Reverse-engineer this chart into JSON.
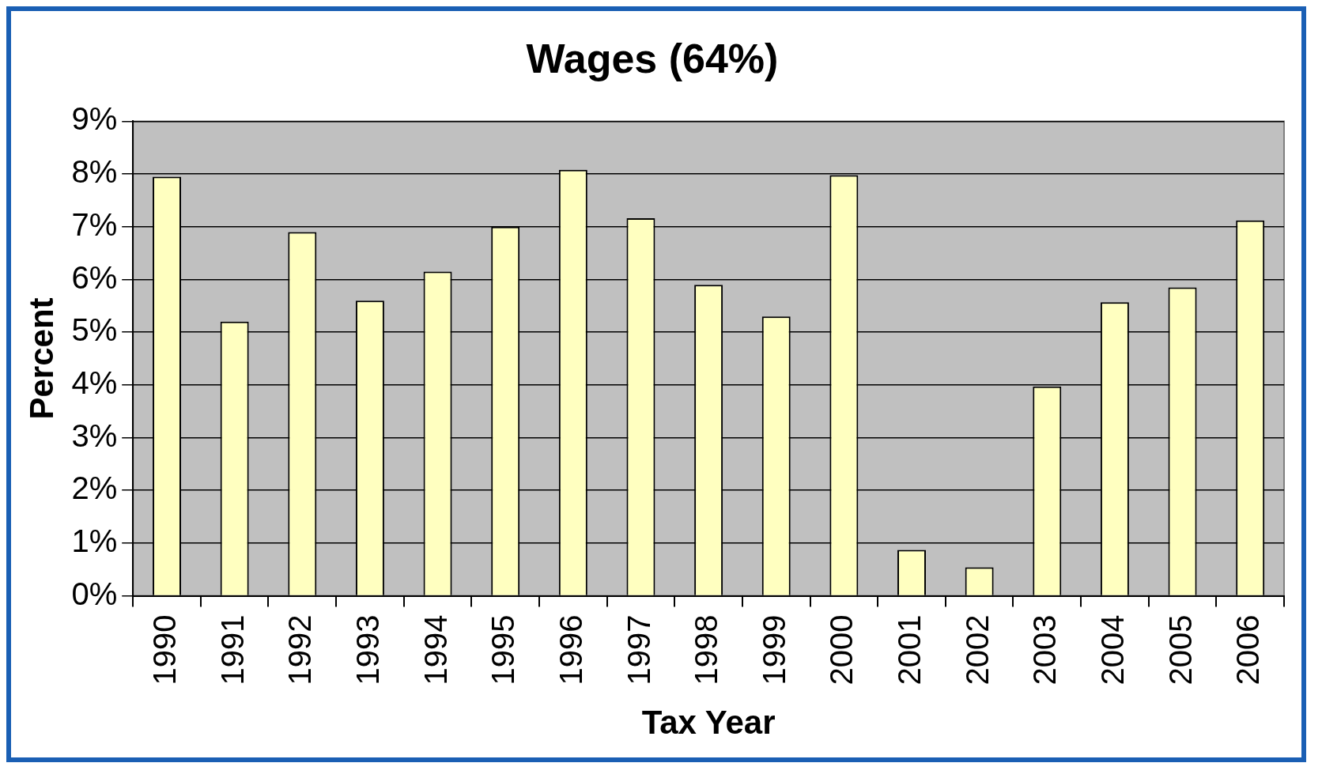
{
  "chart_data": {
    "type": "bar",
    "title": "Wages (64%)",
    "xlabel": "Tax Year",
    "ylabel": "Percent",
    "categories": [
      "1990",
      "1991",
      "1992",
      "1993",
      "1994",
      "1995",
      "1996",
      "1997",
      "1998",
      "1999",
      "2000",
      "2001",
      "2002",
      "2003",
      "2004",
      "2005",
      "2006"
    ],
    "values": [
      7.95,
      5.2,
      6.9,
      5.6,
      6.15,
      7.0,
      8.08,
      7.16,
      5.9,
      5.3,
      7.98,
      0.87,
      0.54,
      3.97,
      5.57,
      5.85,
      7.12
    ],
    "color": "#ffffc0",
    "ylim": [
      0,
      9
    ],
    "yticks": [
      {
        "value": 0,
        "label": "0%"
      },
      {
        "value": 1,
        "label": "1%"
      },
      {
        "value": 2,
        "label": "2%"
      },
      {
        "value": 3,
        "label": "3%"
      },
      {
        "value": 4,
        "label": "4%"
      },
      {
        "value": 5,
        "label": "5%"
      },
      {
        "value": 6,
        "label": "6%"
      },
      {
        "value": 7,
        "label": "7%"
      },
      {
        "value": 8,
        "label": "8%"
      },
      {
        "value": 9,
        "label": "9%"
      }
    ],
    "grid": "y",
    "legend": false
  }
}
